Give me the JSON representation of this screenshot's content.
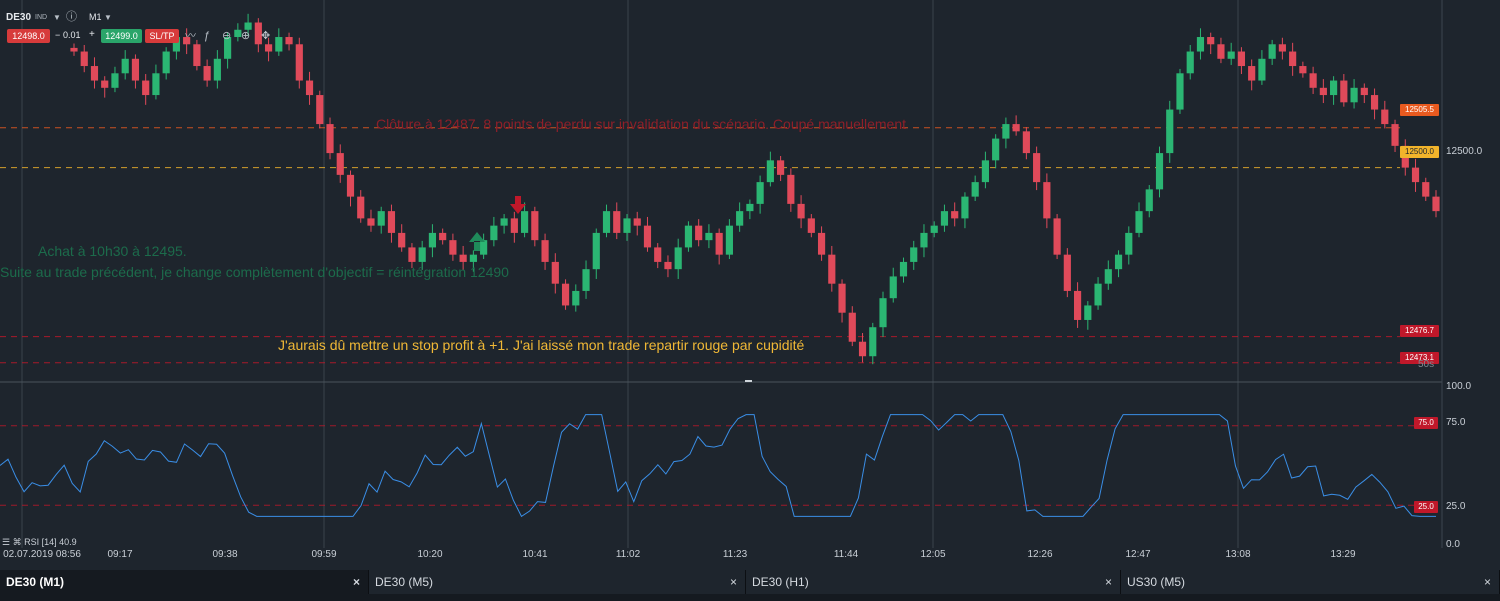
{
  "toolbar": {
    "symbol": "DE30",
    "symbol_type": "IND",
    "timeframe": "M1",
    "bid": "12498.0",
    "spread": "0.01",
    "minus": "−",
    "plus": "+",
    "ask": "12499.0",
    "sltp": "SL/TP"
  },
  "annotations": {
    "close_note": "Clôture à 12487. 8 points de perdu sur invalidation du scénario. Coupé manuellement",
    "buy_note": "Achat à 10h30 à 12495.",
    "reason_note": "Suite au trade précédent, je change complètement d'objectif = réintégration 12490",
    "lesson_note": "J'aurais dû mettre un stop profit à +1. J'ai laissé mon trade repartir rouge par cupidité"
  },
  "price_levels": [
    {
      "label": "12505.5",
      "value": 12505.5,
      "color": "#e85a1f"
    },
    {
      "label": "12500.0",
      "value": 12500.0,
      "color": "#f2b42b"
    },
    {
      "label": "12476.7",
      "value": 12476.7,
      "color": "#c0182a"
    },
    {
      "label": "12473.1",
      "value": 12473.1,
      "color": "#c0182a"
    }
  ],
  "price_axis_label": "12500.0",
  "countdown": "50s",
  "rsi": {
    "label": "RSI [14] 40.9",
    "levels": [
      "100.0",
      "75.0",
      "25.0",
      "0.0"
    ],
    "tag_75": "75.0",
    "tag_25": "25.0"
  },
  "time_axis": [
    "02.07.2019 08:56",
    "09:17",
    "09:38",
    "09:59",
    "10:20",
    "10:41",
    "11:02",
    "11:23",
    "11:44",
    "12:05",
    "12:26",
    "12:47",
    "13:08",
    "13:29"
  ],
  "tabs": [
    {
      "label": "DE30 (M1)",
      "close": "×"
    },
    {
      "label": "DE30 (M5)",
      "close": "×"
    },
    {
      "label": "DE30 (H1)",
      "close": "×"
    },
    {
      "label": "US30 (M5)",
      "close": "×"
    }
  ],
  "colors": {
    "background": "#1e252d",
    "bull": "#2bb673",
    "bear": "#e04a5a",
    "rsi_line": "#3a8ee6"
  },
  "chart_data": {
    "type": "candlestick",
    "symbol": "DE30",
    "timeframe": "M1",
    "price_range": [
      12471,
      12522
    ],
    "candle_closes": [
      12516,
      12514,
      12512,
      12511,
      12513,
      12515,
      12512,
      12510,
      12513,
      12516,
      12518,
      12517,
      12514,
      12512,
      12515,
      12518,
      12519,
      12520,
      12517,
      12516,
      12518,
      12517,
      12512,
      12510,
      12506,
      12502,
      12499,
      12496,
      12493,
      12492,
      12494,
      12491,
      12489,
      12487,
      12489,
      12491,
      12490,
      12488,
      12487,
      12488,
      12490,
      12492,
      12493,
      12491,
      12494,
      12490,
      12487,
      12484,
      12481,
      12483,
      12486,
      12491,
      12494,
      12491,
      12493,
      12492,
      12489,
      12487,
      12486,
      12489,
      12492,
      12490,
      12491,
      12488,
      12492,
      12494,
      12495,
      12498,
      12501,
      12499,
      12495,
      12493,
      12491,
      12488,
      12484,
      12480,
      12476,
      12474,
      12478,
      12482,
      12485,
      12487,
      12489,
      12491,
      12492,
      12494,
      12493,
      12496,
      12498,
      12501,
      12504,
      12506,
      12505,
      12502,
      12498,
      12493,
      12488,
      12483,
      12479,
      12481,
      12484,
      12486,
      12488,
      12491,
      12494,
      12497,
      12502,
      12508,
      12513,
      12516,
      12518,
      12517,
      12515,
      12516,
      12514,
      12512,
      12515,
      12517,
      12516,
      12514,
      12513,
      12511,
      12510,
      12512,
      12509,
      12511,
      12510,
      12508,
      12506,
      12503,
      12500,
      12498,
      12496,
      12494
    ]
  }
}
